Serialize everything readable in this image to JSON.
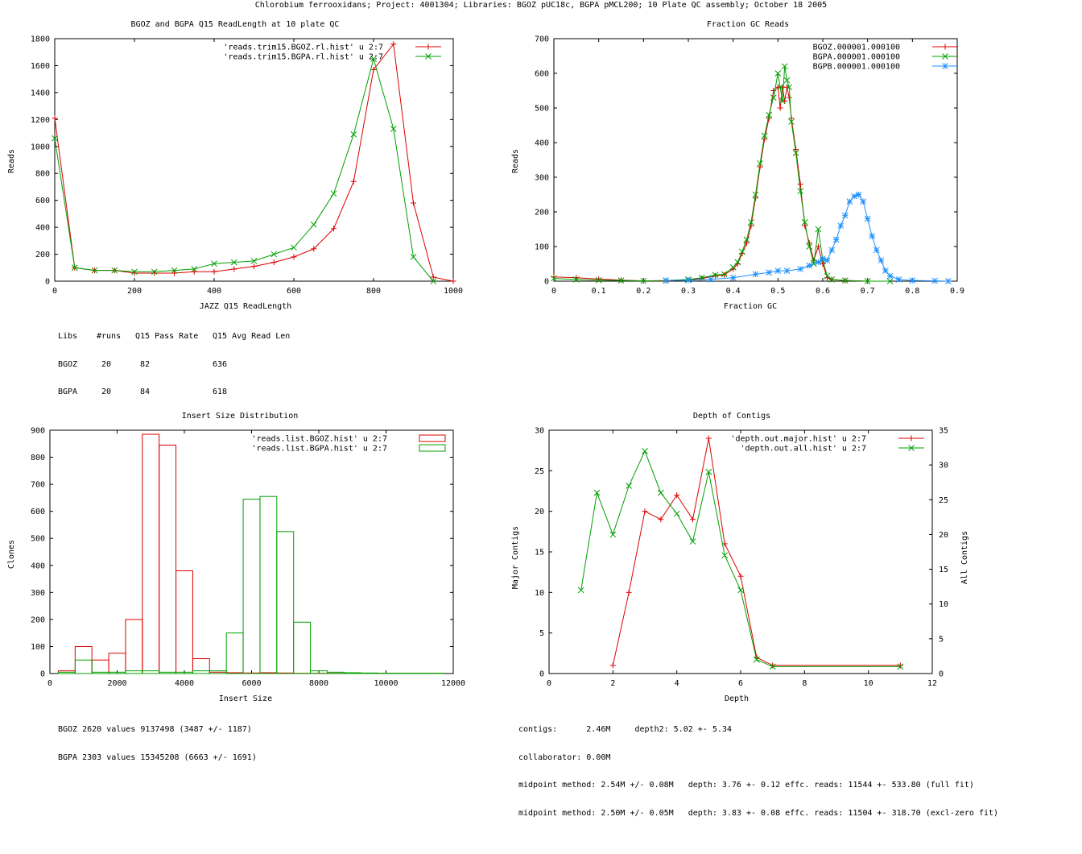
{
  "page": {
    "header": "Chlorobium ferrooxidans; Project: 4001304; Libraries: BGOZ pUC18c, BGPA pMCL200; 10 Plate QC assembly; October 18 2005"
  },
  "colors": {
    "red": "#dd0000",
    "green": "#00a000",
    "blue": "#1e90ff",
    "axis": "#000000"
  },
  "chart_data": [
    {
      "id": "readlength",
      "type": "line",
      "title": "BGOZ and BGPA Q15 ReadLength at 10 plate QC",
      "xlabel": "JAZZ Q15 ReadLength",
      "ylabel": "Reads",
      "xlim": [
        0,
        1000
      ],
      "ylim": [
        0,
        1800
      ],
      "xticks": [
        0,
        200,
        400,
        600,
        800,
        1000
      ],
      "yticks": [
        0,
        200,
        400,
        600,
        800,
        1000,
        1200,
        1400,
        1600,
        1800
      ],
      "legend_position": "top-right",
      "series": [
        {
          "name": "'reads.trim15.BGOZ.rl.hist' u 2:7",
          "color": "#dd0000",
          "marker": "+",
          "x": [
            0,
            50,
            100,
            150,
            200,
            250,
            300,
            350,
            400,
            450,
            500,
            550,
            600,
            650,
            700,
            750,
            800,
            850,
            900,
            950,
            1000
          ],
          "y": [
            1210,
            100,
            80,
            80,
            60,
            60,
            60,
            70,
            70,
            90,
            110,
            140,
            180,
            240,
            390,
            740,
            1570,
            1760,
            580,
            30,
            0
          ]
        },
        {
          "name": "'reads.trim15.BGPA.rl.hist' u 2:7",
          "color": "#00a000",
          "marker": "x",
          "x": [
            0,
            50,
            100,
            150,
            200,
            250,
            300,
            350,
            400,
            450,
            500,
            550,
            600,
            650,
            700,
            750,
            800,
            850,
            900,
            950
          ],
          "y": [
            1060,
            100,
            80,
            80,
            70,
            70,
            80,
            90,
            130,
            140,
            150,
            200,
            250,
            420,
            650,
            1090,
            1650,
            1130,
            180,
            0
          ]
        }
      ],
      "stats_table": {
        "header": [
          "Libs",
          "#runs",
          "Q15 Pass Rate",
          "Q15 Avg Read Len"
        ],
        "rows": [
          [
            "BGOZ",
            "20",
            "82",
            "636"
          ],
          [
            "BGPA",
            "20",
            "84",
            "618"
          ]
        ]
      }
    },
    {
      "id": "gc",
      "type": "line",
      "title": "Fraction GC Reads",
      "xlabel": "Fraction GC",
      "ylabel": "Reads",
      "xlim": [
        0,
        0.9
      ],
      "ylim": [
        0,
        700
      ],
      "xticks": [
        0,
        0.1,
        0.2,
        0.3,
        0.4,
        0.5,
        0.6,
        0.7,
        0.8,
        0.9
      ],
      "yticks": [
        0,
        100,
        200,
        300,
        400,
        500,
        600,
        700
      ],
      "legend_position": "top-right",
      "series": [
        {
          "name": "BGOZ.000001.000100",
          "color": "#dd0000",
          "marker": "+",
          "x": [
            0,
            0.05,
            0.1,
            0.15,
            0.2,
            0.25,
            0.3,
            0.33,
            0.36,
            0.38,
            0.4,
            0.41,
            0.42,
            0.43,
            0.44,
            0.45,
            0.46,
            0.47,
            0.48,
            0.49,
            0.5,
            0.505,
            0.51,
            0.515,
            0.52,
            0.525,
            0.53,
            0.54,
            0.55,
            0.56,
            0.57,
            0.58,
            0.59,
            0.6,
            0.61,
            0.62,
            0.65,
            0.7
          ],
          "y": [
            12,
            10,
            6,
            3,
            1,
            1,
            4,
            8,
            15,
            18,
            35,
            50,
            80,
            110,
            160,
            240,
            330,
            410,
            470,
            550,
            560,
            500,
            560,
            520,
            560,
            530,
            470,
            380,
            280,
            160,
            110,
            60,
            100,
            50,
            10,
            5,
            2,
            0
          ]
        },
        {
          "name": "BGPA.000001.000100",
          "color": "#00a000",
          "marker": "x",
          "x": [
            0,
            0.05,
            0.1,
            0.15,
            0.2,
            0.25,
            0.3,
            0.33,
            0.36,
            0.38,
            0.4,
            0.41,
            0.42,
            0.43,
            0.44,
            0.45,
            0.46,
            0.47,
            0.48,
            0.49,
            0.5,
            0.505,
            0.51,
            0.515,
            0.52,
            0.525,
            0.53,
            0.54,
            0.55,
            0.56,
            0.57,
            0.58,
            0.59,
            0.6,
            0.61,
            0.62,
            0.65,
            0.7,
            0.75
          ],
          "y": [
            8,
            5,
            3,
            2,
            1,
            2,
            5,
            10,
            18,
            20,
            40,
            55,
            85,
            120,
            170,
            250,
            340,
            420,
            480,
            530,
            600,
            560,
            520,
            620,
            580,
            560,
            460,
            370,
            260,
            170,
            100,
            50,
            150,
            60,
            15,
            5,
            2,
            0,
            0
          ]
        },
        {
          "name": "BGPB.000001.000100",
          "color": "#1e90ff",
          "marker": "*",
          "x": [
            0.25,
            0.3,
            0.35,
            0.4,
            0.45,
            0.48,
            0.5,
            0.52,
            0.55,
            0.57,
            0.59,
            0.6,
            0.61,
            0.62,
            0.63,
            0.64,
            0.65,
            0.66,
            0.67,
            0.68,
            0.69,
            0.7,
            0.71,
            0.72,
            0.73,
            0.74,
            0.75,
            0.77,
            0.8,
            0.85,
            0.88
          ],
          "y": [
            2,
            3,
            5,
            10,
            20,
            25,
            30,
            30,
            35,
            45,
            55,
            65,
            60,
            90,
            120,
            160,
            190,
            230,
            245,
            250,
            230,
            180,
            130,
            90,
            60,
            30,
            15,
            5,
            2,
            1,
            0
          ]
        }
      ]
    },
    {
      "id": "insert",
      "type": "bar",
      "title": "Insert Size Distribution",
      "xlabel": "Insert Size",
      "ylabel": "Clones",
      "xlim": [
        0,
        12000
      ],
      "ylim": [
        0,
        900
      ],
      "xticks": [
        0,
        2000,
        4000,
        6000,
        8000,
        10000,
        12000
      ],
      "yticks": [
        0,
        100,
        200,
        300,
        400,
        500,
        600,
        700,
        800,
        900
      ],
      "bin_width": 500,
      "legend_position": "top-right",
      "series": [
        {
          "name": "'reads.list.BGOZ.hist' u 2:7",
          "color": "#dd0000",
          "bin_starts": [
            250,
            750,
            1250,
            1750,
            2250,
            2750,
            3250,
            3750,
            4250,
            4750,
            5250,
            5750,
            6250,
            6750,
            7250,
            7750,
            8250,
            8750,
            9250,
            9750,
            10250,
            10750,
            11250
          ],
          "values": [
            10,
            100,
            50,
            75,
            200,
            885,
            845,
            380,
            55,
            5,
            3,
            2,
            3,
            2,
            1,
            1,
            1,
            1,
            1,
            1,
            1,
            1,
            1
          ]
        },
        {
          "name": "'reads.list.BGPA.hist' u 2:7",
          "color": "#00a000",
          "bin_starts": [
            250,
            750,
            1250,
            1750,
            2250,
            2750,
            3250,
            3750,
            4250,
            4750,
            5250,
            5750,
            6250,
            6750,
            7250,
            7750,
            8250,
            8750,
            9250,
            9750,
            10250,
            10750,
            11250
          ],
          "values": [
            5,
            50,
            5,
            5,
            10,
            10,
            5,
            5,
            10,
            10,
            150,
            645,
            655,
            525,
            190,
            10,
            5,
            3,
            2,
            1,
            1,
            1,
            1
          ]
        }
      ],
      "stats_lines": [
        "BGOZ 2620 values 9137498 (3487 +/- 1187)",
        "BGPA 2303 values 15345208 (6663 +/- 1691)"
      ]
    },
    {
      "id": "depth",
      "type": "line",
      "title": "Depth of Contigs",
      "xlabel": "Depth",
      "ylabel": "Major Contigs",
      "y2label": "All Contigs",
      "xlim": [
        0,
        12
      ],
      "ylim": [
        0,
        30
      ],
      "y2lim": [
        0,
        35
      ],
      "xticks": [
        0,
        2,
        4,
        6,
        8,
        10,
        12
      ],
      "yticks": [
        0,
        5,
        10,
        15,
        20,
        25,
        30
      ],
      "y2ticks": [
        0,
        5,
        10,
        15,
        20,
        25,
        30,
        35
      ],
      "legend_position": "top-right",
      "series": [
        {
          "name": "'depth.out.major.hist' u 2:7",
          "color": "#dd0000",
          "marker": "+",
          "axis": "y",
          "x": [
            2,
            2.5,
            3,
            3.5,
            4,
            4.5,
            5,
            5.5,
            6,
            6.5,
            7,
            11
          ],
          "y": [
            1,
            10,
            20,
            19,
            22,
            19,
            29,
            16,
            12,
            2,
            1,
            1
          ]
        },
        {
          "name": "'depth.out.all.hist' u 2:7",
          "color": "#00a000",
          "marker": "x",
          "axis": "y2",
          "x": [
            1,
            1.5,
            2,
            2.5,
            3,
            3.5,
            4,
            4.5,
            5,
            5.5,
            6,
            6.5,
            7,
            11
          ],
          "y": [
            12,
            26,
            20,
            27,
            32,
            26,
            23,
            19,
            29,
            17,
            12,
            2,
            1,
            1
          ]
        }
      ],
      "stats_lines": [
        "contigs:      2.46M     depth2: 5.02 +- 5.34",
        "collaborator: 0.00M",
        "midpoint method: 2.54M +/- 0.08M   depth: 3.76 +- 0.12 effc. reads: 11544 +- 533.80 (full fit)",
        "midpoint method: 2.50M +/- 0.05M   depth: 3.83 +- 0.08 effc. reads: 11504 +- 318.70 (excl-zero fit)"
      ]
    }
  ]
}
